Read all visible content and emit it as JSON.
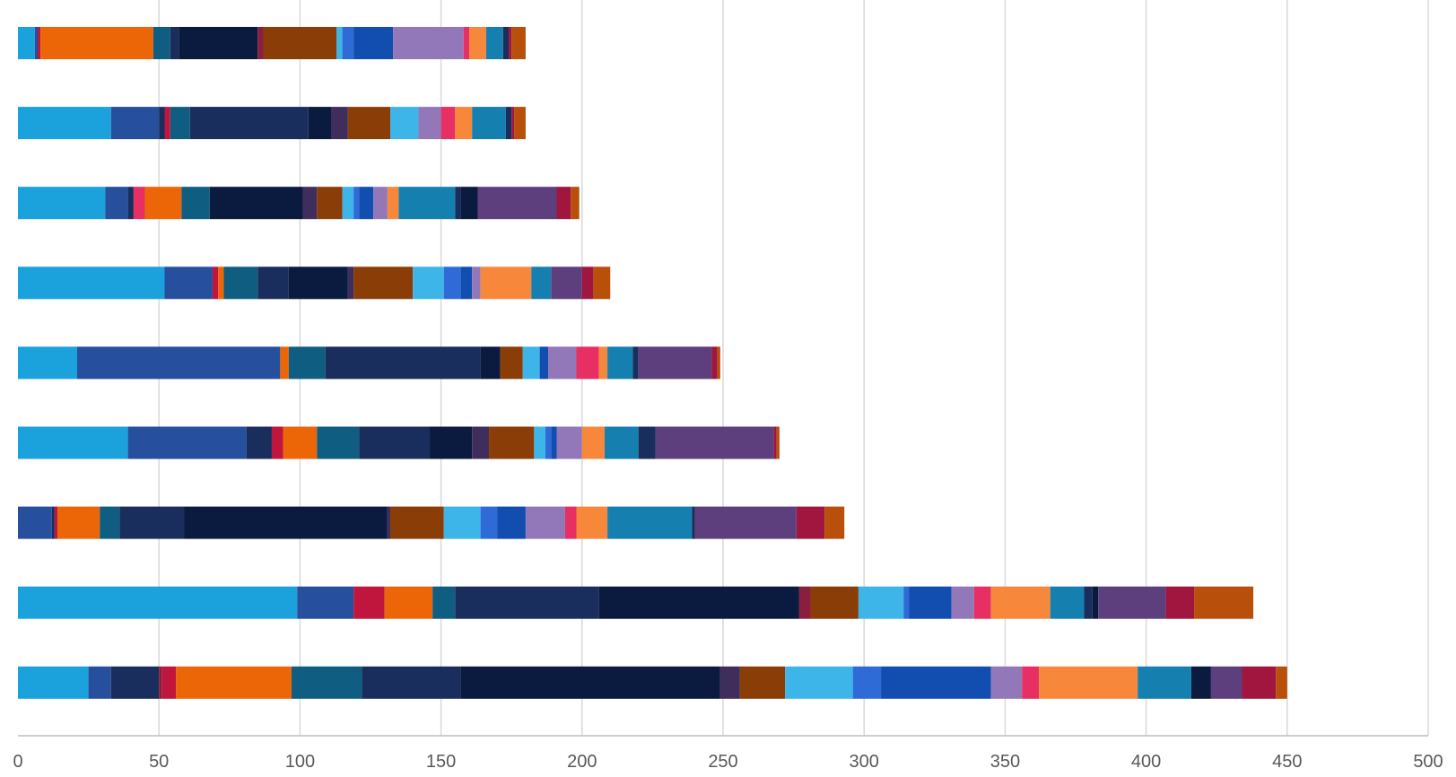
{
  "chart_data": {
    "type": "bar",
    "orientation": "horizontal",
    "stacked": true,
    "title": "",
    "xlabel": "",
    "ylabel": "",
    "xlim": [
      0,
      500
    ],
    "x_ticks": [
      "0",
      "50",
      "100",
      "150",
      "200",
      "250",
      "300",
      "350",
      "400",
      "450",
      "500"
    ],
    "grid": "vertical",
    "legend": "none",
    "bars": [
      {
        "segments": [
          {
            "value": 6,
            "color": "#1BA1DC"
          },
          {
            "value": 1,
            "color": "#264F9E"
          },
          {
            "value": 1,
            "color": "#C0163E"
          },
          {
            "value": 40,
            "color": "#EC6608"
          },
          {
            "value": 6,
            "color": "#0F5E82"
          },
          {
            "value": 3,
            "color": "#1A2E5E"
          },
          {
            "value": 28,
            "color": "#0A1B3F"
          },
          {
            "value": 2,
            "color": "#8B1E3F"
          },
          {
            "value": 26,
            "color": "#8A3D06"
          },
          {
            "value": 2,
            "color": "#3DB5E8"
          },
          {
            "value": 4,
            "color": "#2F6BD6"
          },
          {
            "value": 14,
            "color": "#124DB0"
          },
          {
            "value": 25,
            "color": "#9277B9"
          },
          {
            "value": 2,
            "color": "#E72F63"
          },
          {
            "value": 6,
            "color": "#F7883B"
          },
          {
            "value": 6,
            "color": "#1580AF"
          },
          {
            "value": 2,
            "color": "#1A2E5E"
          },
          {
            "value": 1,
            "color": "#A0163F"
          },
          {
            "value": 5,
            "color": "#B84F0A"
          }
        ]
      },
      {
        "segments": [
          {
            "value": 33,
            "color": "#1BA1DC"
          },
          {
            "value": 17,
            "color": "#264F9E"
          },
          {
            "value": 2,
            "color": "#1A2E5E"
          },
          {
            "value": 2,
            "color": "#C0163E"
          },
          {
            "value": 7,
            "color": "#0F5E82"
          },
          {
            "value": 42,
            "color": "#1A2E5E"
          },
          {
            "value": 8,
            "color": "#0A1B3F"
          },
          {
            "value": 6,
            "color": "#3F2E5C"
          },
          {
            "value": 15,
            "color": "#8A3D06"
          },
          {
            "value": 10,
            "color": "#3DB5E8"
          },
          {
            "value": 8,
            "color": "#9277B9"
          },
          {
            "value": 5,
            "color": "#E72F63"
          },
          {
            "value": 6,
            "color": "#F7883B"
          },
          {
            "value": 12,
            "color": "#1580AF"
          },
          {
            "value": 2,
            "color": "#1A2E5E"
          },
          {
            "value": 1,
            "color": "#A0163F"
          },
          {
            "value": 4,
            "color": "#B84F0A"
          }
        ]
      },
      {
        "segments": [
          {
            "value": 31,
            "color": "#1BA1DC"
          },
          {
            "value": 8,
            "color": "#264F9E"
          },
          {
            "value": 2,
            "color": "#1A2E5E"
          },
          {
            "value": 4,
            "color": "#E72F63"
          },
          {
            "value": 13,
            "color": "#EC6608"
          },
          {
            "value": 10,
            "color": "#0F5E82"
          },
          {
            "value": 33,
            "color": "#0A1B3F"
          },
          {
            "value": 5,
            "color": "#3F2E5C"
          },
          {
            "value": 9,
            "color": "#8A3D06"
          },
          {
            "value": 4,
            "color": "#3DB5E8"
          },
          {
            "value": 2,
            "color": "#2F6BD6"
          },
          {
            "value": 5,
            "color": "#124DB0"
          },
          {
            "value": 5,
            "color": "#9277B9"
          },
          {
            "value": 4,
            "color": "#F7883B"
          },
          {
            "value": 20,
            "color": "#1580AF"
          },
          {
            "value": 2,
            "color": "#1A2E5E"
          },
          {
            "value": 6,
            "color": "#0A1B3F"
          },
          {
            "value": 28,
            "color": "#5E3F7E"
          },
          {
            "value": 5,
            "color": "#A0163F"
          },
          {
            "value": 3,
            "color": "#B84F0A"
          }
        ]
      },
      {
        "segments": [
          {
            "value": 52,
            "color": "#1BA1DC"
          },
          {
            "value": 17,
            "color": "#264F9E"
          },
          {
            "value": 2,
            "color": "#C0163E"
          },
          {
            "value": 2,
            "color": "#EC6608"
          },
          {
            "value": 12,
            "color": "#0F5E82"
          },
          {
            "value": 11,
            "color": "#1A2E5E"
          },
          {
            "value": 21,
            "color": "#0A1B3F"
          },
          {
            "value": 2,
            "color": "#3F2E5C"
          },
          {
            "value": 21,
            "color": "#8A3D06"
          },
          {
            "value": 11,
            "color": "#3DB5E8"
          },
          {
            "value": 6,
            "color": "#2F6BD6"
          },
          {
            "value": 4,
            "color": "#124DB0"
          },
          {
            "value": 3,
            "color": "#9277B9"
          },
          {
            "value": 18,
            "color": "#F7883B"
          },
          {
            "value": 7,
            "color": "#1580AF"
          },
          {
            "value": 11,
            "color": "#5E3F7E"
          },
          {
            "value": 4,
            "color": "#A0163F"
          },
          {
            "value": 6,
            "color": "#B84F0A"
          }
        ]
      },
      {
        "segments": [
          {
            "value": 21,
            "color": "#1BA1DC"
          },
          {
            "value": 72,
            "color": "#264F9E"
          },
          {
            "value": 3,
            "color": "#EC6608"
          },
          {
            "value": 13,
            "color": "#0F5E82"
          },
          {
            "value": 55,
            "color": "#1A2E5E"
          },
          {
            "value": 7,
            "color": "#0A1B3F"
          },
          {
            "value": 8,
            "color": "#8A3D06"
          },
          {
            "value": 6,
            "color": "#3DB5E8"
          },
          {
            "value": 3,
            "color": "#124DB0"
          },
          {
            "value": 10,
            "color": "#9277B9"
          },
          {
            "value": 8,
            "color": "#E72F63"
          },
          {
            "value": 3,
            "color": "#F7883B"
          },
          {
            "value": 9,
            "color": "#1580AF"
          },
          {
            "value": 2,
            "color": "#1A2E5E"
          },
          {
            "value": 26,
            "color": "#5E3F7E"
          },
          {
            "value": 2,
            "color": "#A0163F"
          },
          {
            "value": 1,
            "color": "#B84F0A"
          }
        ]
      },
      {
        "segments": [
          {
            "value": 39,
            "color": "#1BA1DC"
          },
          {
            "value": 42,
            "color": "#264F9E"
          },
          {
            "value": 9,
            "color": "#1A2E5E"
          },
          {
            "value": 4,
            "color": "#C0163E"
          },
          {
            "value": 12,
            "color": "#EC6608"
          },
          {
            "value": 15,
            "color": "#0F5E82"
          },
          {
            "value": 25,
            "color": "#1A2E5E"
          },
          {
            "value": 15,
            "color": "#0A1B3F"
          },
          {
            "value": 6,
            "color": "#3F2E5C"
          },
          {
            "value": 16,
            "color": "#8A3D06"
          },
          {
            "value": 4,
            "color": "#3DB5E8"
          },
          {
            "value": 2,
            "color": "#2F6BD6"
          },
          {
            "value": 2,
            "color": "#124DB0"
          },
          {
            "value": 9,
            "color": "#9277B9"
          },
          {
            "value": 8,
            "color": "#F7883B"
          },
          {
            "value": 12,
            "color": "#1580AF"
          },
          {
            "value": 6,
            "color": "#1A2E5E"
          },
          {
            "value": 42,
            "color": "#5E3F7E"
          },
          {
            "value": 1,
            "color": "#A0163F"
          },
          {
            "value": 1,
            "color": "#B84F0A"
          }
        ]
      },
      {
        "segments": [
          {
            "value": 12,
            "color": "#264F9E"
          },
          {
            "value": 1,
            "color": "#1A2E5E"
          },
          {
            "value": 1,
            "color": "#C0163E"
          },
          {
            "value": 15,
            "color": "#EC6608"
          },
          {
            "value": 7,
            "color": "#0F5E82"
          },
          {
            "value": 23,
            "color": "#1A2E5E"
          },
          {
            "value": 72,
            "color": "#0A1B3F"
          },
          {
            "value": 1,
            "color": "#3F2E5C"
          },
          {
            "value": 19,
            "color": "#8A3D06"
          },
          {
            "value": 13,
            "color": "#3DB5E8"
          },
          {
            "value": 6,
            "color": "#2F6BD6"
          },
          {
            "value": 10,
            "color": "#124DB0"
          },
          {
            "value": 14,
            "color": "#9277B9"
          },
          {
            "value": 4,
            "color": "#E72F63"
          },
          {
            "value": 11,
            "color": "#F7883B"
          },
          {
            "value": 30,
            "color": "#1580AF"
          },
          {
            "value": 1,
            "color": "#1A2E5E"
          },
          {
            "value": 36,
            "color": "#5E3F7E"
          },
          {
            "value": 10,
            "color": "#A0163F"
          },
          {
            "value": 7,
            "color": "#B84F0A"
          }
        ]
      },
      {
        "segments": [
          {
            "value": 99,
            "color": "#1BA1DC"
          },
          {
            "value": 20,
            "color": "#264F9E"
          },
          {
            "value": 11,
            "color": "#C0163E"
          },
          {
            "value": 17,
            "color": "#EC6608"
          },
          {
            "value": 8,
            "color": "#0F5E82"
          },
          {
            "value": 51,
            "color": "#1A2E5E"
          },
          {
            "value": 71,
            "color": "#0A1B3F"
          },
          {
            "value": 4,
            "color": "#8B1E3F"
          },
          {
            "value": 17,
            "color": "#8A3D06"
          },
          {
            "value": 16,
            "color": "#3DB5E8"
          },
          {
            "value": 2,
            "color": "#2F6BD6"
          },
          {
            "value": 15,
            "color": "#124DB0"
          },
          {
            "value": 8,
            "color": "#9277B9"
          },
          {
            "value": 6,
            "color": "#E72F63"
          },
          {
            "value": 21,
            "color": "#F7883B"
          },
          {
            "value": 12,
            "color": "#1580AF"
          },
          {
            "value": 3,
            "color": "#1A2E5E"
          },
          {
            "value": 2,
            "color": "#0A1B3F"
          },
          {
            "value": 24,
            "color": "#5E3F7E"
          },
          {
            "value": 10,
            "color": "#A0163F"
          },
          {
            "value": 21,
            "color": "#B84F0A"
          }
        ]
      },
      {
        "segments": [
          {
            "value": 25,
            "color": "#1BA1DC"
          },
          {
            "value": 8,
            "color": "#264F9E"
          },
          {
            "value": 17,
            "color": "#1A2E5E"
          },
          {
            "value": 1,
            "color": "#8B1E3F"
          },
          {
            "value": 5,
            "color": "#C0163E"
          },
          {
            "value": 41,
            "color": "#EC6608"
          },
          {
            "value": 25,
            "color": "#0F5E82"
          },
          {
            "value": 35,
            "color": "#1A2E5E"
          },
          {
            "value": 92,
            "color": "#0A1B3F"
          },
          {
            "value": 7,
            "color": "#3F2E5C"
          },
          {
            "value": 16,
            "color": "#8A3D06"
          },
          {
            "value": 24,
            "color": "#3DB5E8"
          },
          {
            "value": 10,
            "color": "#2F6BD6"
          },
          {
            "value": 39,
            "color": "#124DB0"
          },
          {
            "value": 11,
            "color": "#9277B9"
          },
          {
            "value": 6,
            "color": "#E72F63"
          },
          {
            "value": 35,
            "color": "#F7883B"
          },
          {
            "value": 19,
            "color": "#1580AF"
          },
          {
            "value": 7,
            "color": "#0A1B3F"
          },
          {
            "value": 11,
            "color": "#5E3F7E"
          },
          {
            "value": 12,
            "color": "#A0163F"
          },
          {
            "value": 4,
            "color": "#B84F0A"
          }
        ]
      }
    ]
  }
}
